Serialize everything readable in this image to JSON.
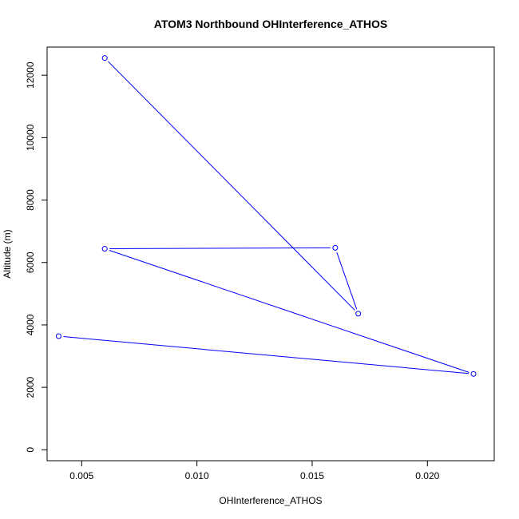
{
  "chart_data": {
    "type": "line",
    "title": "ATOM3 Northbound OHInterference_ATHOS",
    "xlabel": "OHInterference_ATHOS",
    "ylabel": "Altitude (m)",
    "xlim": [
      0.0035,
      0.0229
    ],
    "ylim": [
      -350,
      12900
    ],
    "x_ticks": [
      0.005,
      0.01,
      0.015,
      0.02
    ],
    "x_tick_labels": [
      "0.005",
      "0.010",
      "0.015",
      "0.020"
    ],
    "y_ticks": [
      0,
      2000,
      4000,
      6000,
      8000,
      10000,
      12000
    ],
    "y_tick_labels": [
      "0",
      "2000",
      "4000",
      "6000",
      "8000",
      "10000",
      "12000"
    ],
    "grid": false,
    "series": [
      {
        "color": "#0000ff",
        "marker": "open-circle",
        "points": [
          {
            "x": 0.004,
            "y": 3640
          },
          {
            "x": 0.022,
            "y": 2430
          },
          {
            "x": 0.006,
            "y": 6440
          },
          {
            "x": 0.016,
            "y": 6470
          },
          {
            "x": 0.017,
            "y": 4360
          },
          {
            "x": 0.006,
            "y": 12550
          }
        ]
      }
    ]
  }
}
